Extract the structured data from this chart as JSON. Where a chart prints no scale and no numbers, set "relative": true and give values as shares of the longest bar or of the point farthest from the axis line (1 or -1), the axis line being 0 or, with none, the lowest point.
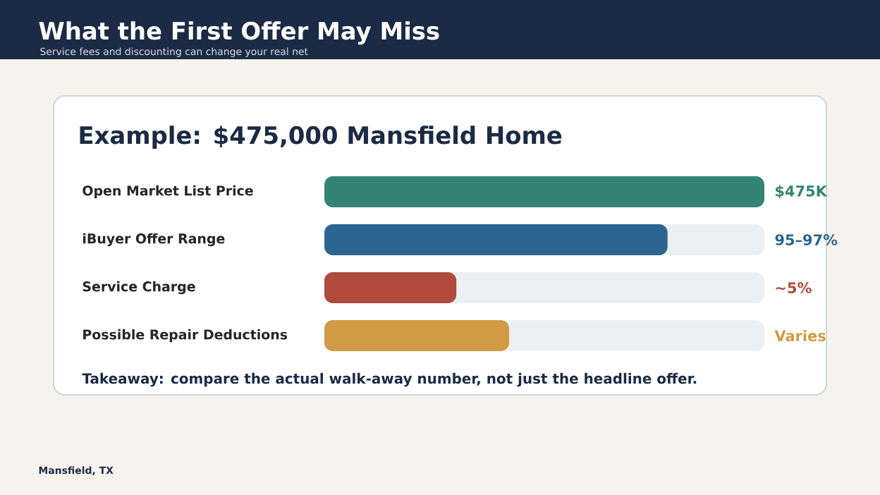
{
  "chart_data": {
    "type": "bar",
    "orientation": "horizontal",
    "relative": true,
    "title": "What the First Offer May Miss",
    "subtitle": "Service fees and discounting can change your real net",
    "categories": [
      "Open Market List Price",
      "iBuyer Offer Range",
      "Service Charge",
      "Possible Repair Deductions"
    ],
    "values": [
      1,
      0.78,
      0.3,
      0.42
    ],
    "colors": [
      "#338477",
      "#2c6690",
      "#b04a3c",
      "#d19a45"
    ],
    "annotations": [
      "Example: $475,000 Mansfield Home",
      "Takeaway: compare the actual walk-away number, not just the headline offer.",
      "Mansfield, TX",
      "$475K",
      "95–97%",
      "~5%",
      "Varies"
    ]
  }
}
